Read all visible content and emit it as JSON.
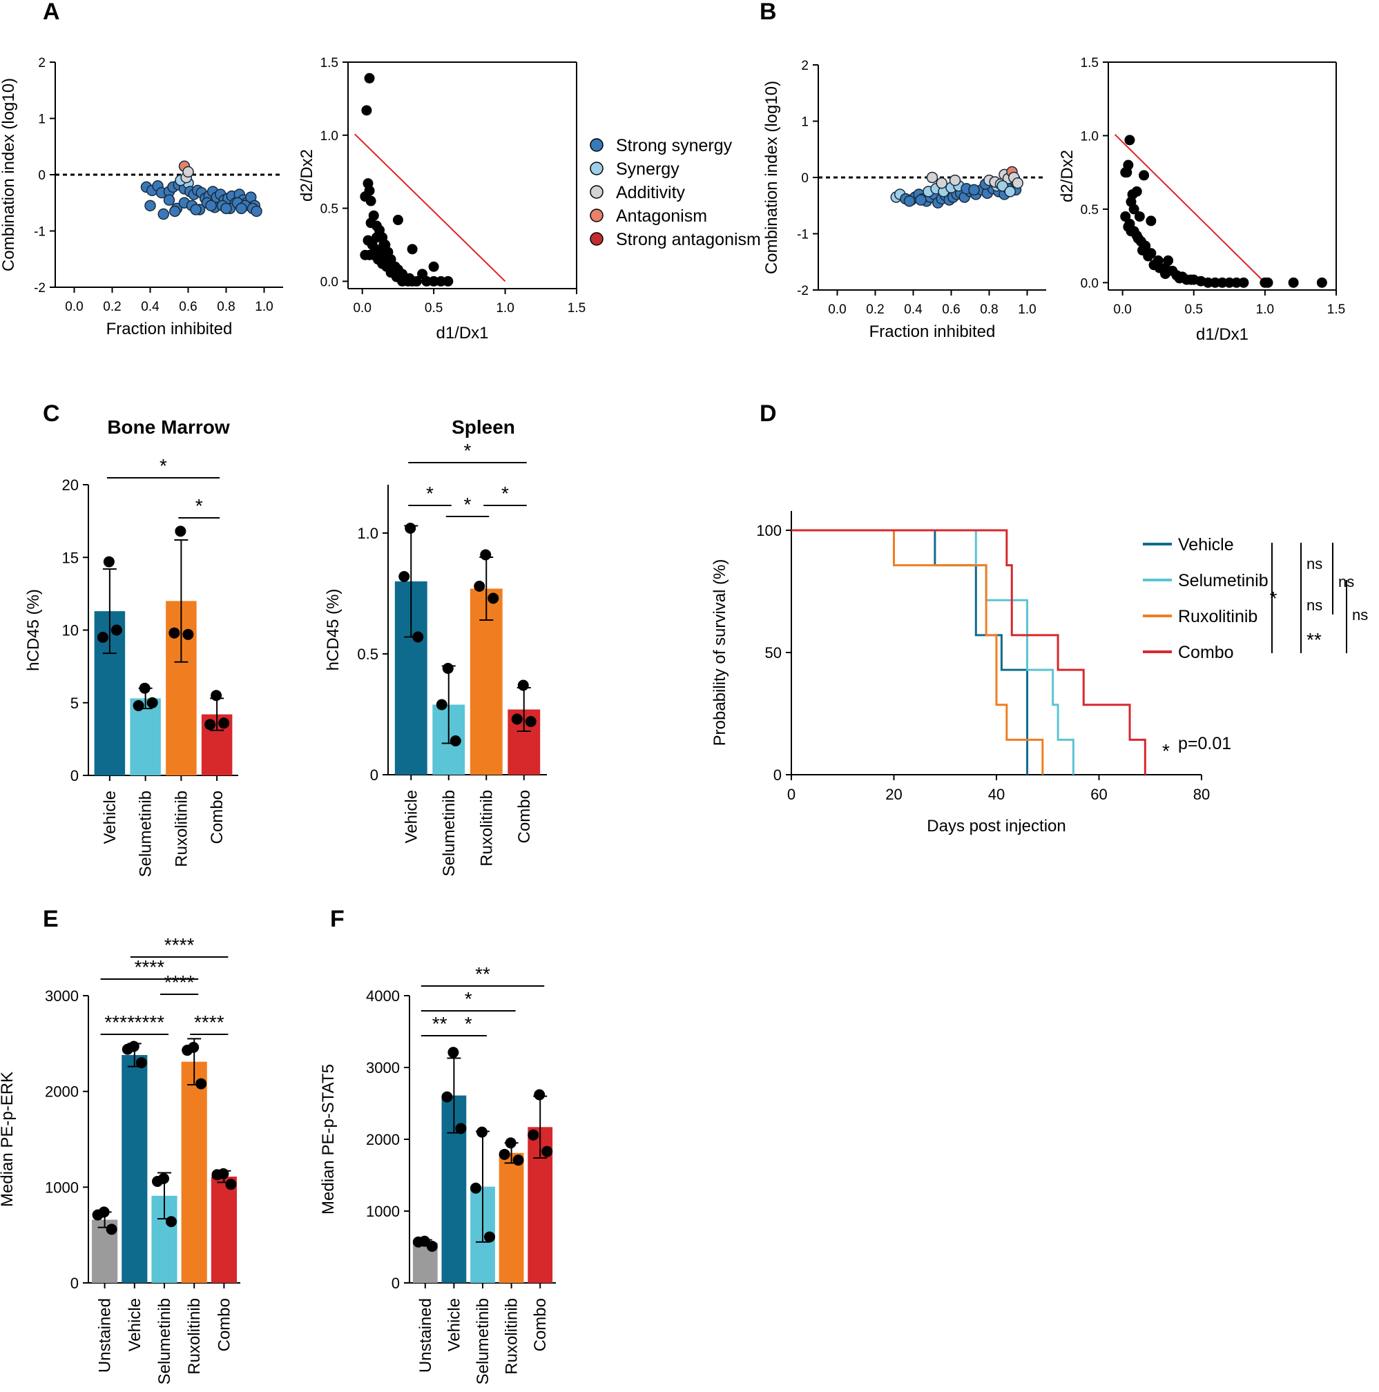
{
  "colors": {
    "vehicle": "#0f6b8e",
    "selumetinib": "#5bc4d6",
    "ruxolitinib": "#f07e21",
    "combo": "#d7282c",
    "unstained": "#9b9b9b",
    "strong_synergy": "#3a79b9",
    "synergy": "#9fcfe8",
    "additivity": "#d3d3d3",
    "antagonism": "#e8806a",
    "strong_antagonism": "#c22d2f",
    "isobol": "#e02020"
  },
  "chart_data": [
    {
      "panel": "A",
      "type": "scatter",
      "xlabel": "Fraction inhibited",
      "ylabel": "Combination index (log10)",
      "xticks": [
        "0.0",
        "0.2",
        "0.4",
        "0.6",
        "0.8",
        "1.0"
      ],
      "yticks": [
        "2",
        "1",
        "0",
        "-1",
        "-2"
      ],
      "xlim": [
        -0.1,
        1.1
      ],
      "ylim": [
        -2,
        2
      ],
      "reference_line": 0,
      "x": [
        0.38,
        0.41,
        0.44,
        0.46,
        0.5,
        0.52,
        0.55,
        0.57,
        0.58,
        0.6,
        0.61,
        0.63,
        0.65,
        0.67,
        0.69,
        0.71,
        0.73,
        0.75,
        0.77,
        0.79,
        0.81,
        0.83,
        0.85,
        0.87,
        0.89,
        0.91,
        0.93,
        0.95,
        0.4,
        0.5,
        0.54,
        0.58,
        0.62,
        0.66,
        0.7,
        0.74,
        0.78,
        0.82,
        0.86,
        0.9,
        0.94,
        0.47,
        0.53,
        0.64,
        0.72,
        0.8,
        0.88,
        0.96,
        0.56,
        0.59,
        0.58,
        0.6
      ],
      "y": [
        -0.22,
        -0.28,
        -0.2,
        -0.32,
        -0.3,
        -0.22,
        -0.18,
        -0.12,
        -0.25,
        -0.15,
        -0.3,
        -0.35,
        -0.28,
        -0.32,
        -0.42,
        -0.38,
        -0.3,
        -0.4,
        -0.35,
        -0.45,
        -0.42,
        -0.38,
        -0.5,
        -0.35,
        -0.45,
        -0.5,
        -0.4,
        -0.55,
        -0.55,
        -0.45,
        -0.6,
        -0.5,
        -0.55,
        -0.62,
        -0.5,
        -0.58,
        -0.55,
        -0.6,
        -0.5,
        -0.55,
        -0.6,
        -0.7,
        -0.65,
        -0.62,
        -0.55,
        -0.6,
        -0.6,
        -0.65,
        -0.1,
        -0.05,
        0.15,
        0.05
      ],
      "class": [
        "ss",
        "ss",
        "ss",
        "ss",
        "ss",
        "ss",
        "ss",
        "syn",
        "ss",
        "syn",
        "ss",
        "ss",
        "ss",
        "ss",
        "ss",
        "ss",
        "ss",
        "ss",
        "ss",
        "ss",
        "ss",
        "ss",
        "ss",
        "ss",
        "ss",
        "ss",
        "ss",
        "ss",
        "ss",
        "ss",
        "ss",
        "ss",
        "ss",
        "ss",
        "ss",
        "ss",
        "ss",
        "ss",
        "ss",
        "ss",
        "ss",
        "ss",
        "ss",
        "ss",
        "ss",
        "ss",
        "ss",
        "ss",
        "syn",
        "add",
        "ant",
        "add"
      ]
    },
    {
      "panel": "A",
      "type": "scatter",
      "xlabel": "d1/Dx1",
      "ylabel": "d2/Dx2",
      "xticks": [
        "0.0",
        "0.5",
        "1.0",
        "1.5"
      ],
      "yticks": [
        "1.5",
        "1.0",
        "0.5",
        "0.0"
      ],
      "xlim": [
        -0.1,
        1.5
      ],
      "ylim": [
        -0.05,
        1.5
      ],
      "x": [
        0.05,
        0.03,
        0.04,
        0.05,
        0.02,
        0.06,
        0.08,
        0.1,
        0.04,
        0.07,
        0.09,
        0.12,
        0.15,
        0.18,
        0.2,
        0.22,
        0.25,
        0.28,
        0.3,
        0.33,
        0.35,
        0.12,
        0.14,
        0.16,
        0.18,
        0.2,
        0.23,
        0.26,
        0.02,
        0.05,
        0.08,
        0.11,
        0.14,
        0.17,
        0.2,
        0.24,
        0.28,
        0.32,
        0.38,
        0.42,
        0.45,
        0.5,
        0.55,
        0.6,
        0.06,
        0.1,
        0.15,
        0.25,
        0.35,
        0.5
      ],
      "y": [
        1.39,
        1.17,
        0.67,
        0.62,
        0.58,
        0.55,
        0.45,
        0.38,
        0.28,
        0.25,
        0.22,
        0.2,
        0.18,
        0.15,
        0.12,
        0.1,
        0.08,
        0.05,
        0.02,
        0.02,
        0.0,
        0.35,
        0.3,
        0.25,
        0.2,
        0.15,
        0.1,
        0.05,
        0.18,
        0.18,
        0.18,
        0.15,
        0.12,
        0.1,
        0.06,
        0.03,
        0.0,
        0.0,
        0.0,
        0.05,
        0.0,
        0.0,
        0.0,
        0.0,
        0.4,
        0.3,
        0.25,
        0.42,
        0.22,
        0.1
      ],
      "reference_line": {
        "from": [
          0,
          0.97
        ],
        "to": [
          1.0,
          0.0
        ]
      }
    },
    {
      "panel": "B",
      "type": "scatter",
      "xlabel": "Fraction inhibited",
      "ylabel": "Combination index (log10)",
      "xticks": [
        "0.0",
        "0.2",
        "0.4",
        "0.6",
        "0.8",
        "1.0"
      ],
      "yticks": [
        "2",
        "1",
        "0",
        "-1",
        "-2"
      ],
      "xlim": [
        -0.1,
        1.1
      ],
      "ylim": [
        -2,
        2
      ],
      "reference_line": 0,
      "x": [
        0.31,
        0.33,
        0.36,
        0.39,
        0.41,
        0.43,
        0.45,
        0.47,
        0.49,
        0.51,
        0.53,
        0.55,
        0.57,
        0.59,
        0.61,
        0.63,
        0.65,
        0.67,
        0.7,
        0.73,
        0.76,
        0.79,
        0.82,
        0.85,
        0.88,
        0.91,
        0.94,
        0.38,
        0.44,
        0.48,
        0.52,
        0.56,
        0.6,
        0.64,
        0.68,
        0.72,
        0.78,
        0.84,
        0.9,
        0.5,
        0.55,
        0.62,
        0.8,
        0.83,
        0.86,
        0.88,
        0.9,
        0.92,
        0.93,
        0.95,
        0.87,
        0.91
      ],
      "y": [
        -0.35,
        -0.3,
        -0.38,
        -0.4,
        -0.35,
        -0.3,
        -0.38,
        -0.42,
        -0.35,
        -0.3,
        -0.45,
        -0.38,
        -0.32,
        -0.4,
        -0.35,
        -0.3,
        -0.28,
        -0.35,
        -0.25,
        -0.3,
        -0.22,
        -0.28,
        -0.2,
        -0.25,
        -0.3,
        -0.18,
        -0.22,
        -0.42,
        -0.4,
        -0.25,
        -0.2,
        -0.25,
        -0.18,
        -0.15,
        -0.2,
        -0.22,
        -0.12,
        -0.15,
        -0.2,
        0.0,
        -0.1,
        -0.05,
        -0.05,
        -0.08,
        -0.12,
        0.05,
        -0.02,
        0.1,
        0.0,
        -0.1,
        -0.15,
        -0.25
      ],
      "class": [
        "syn",
        "syn",
        "ss",
        "ss",
        "ss",
        "ss",
        "ss",
        "ss",
        "ss",
        "ss",
        "ss",
        "ss",
        "ss",
        "ss",
        "ss",
        "ss",
        "ss",
        "ss",
        "ss",
        "ss",
        "ss",
        "ss",
        "ss",
        "ss",
        "ss",
        "ss",
        "ss",
        "ss",
        "ss",
        "syn",
        "syn",
        "syn",
        "syn",
        "syn",
        "ss",
        "ss",
        "ss",
        "syn",
        "ss",
        "add",
        "add",
        "add",
        "add",
        "add",
        "add",
        "add",
        "add",
        "ant",
        "add",
        "add",
        "syn",
        "syn"
      ]
    },
    {
      "panel": "B",
      "type": "scatter",
      "xlabel": "d1/Dx1",
      "ylabel": "d2/Dx2",
      "xticks": [
        "0.0",
        "0.5",
        "1.0",
        "1.5"
      ],
      "yticks": [
        "1.5",
        "1.0",
        "0.5",
        "0.0"
      ],
      "xlim": [
        -0.1,
        1.5
      ],
      "ylim": [
        -0.05,
        1.5
      ],
      "x": [
        0.05,
        0.02,
        0.04,
        0.07,
        0.1,
        0.15,
        0.06,
        0.08,
        0.12,
        0.02,
        0.04,
        0.06,
        0.1,
        0.13,
        0.16,
        0.2,
        0.25,
        0.3,
        0.35,
        0.38,
        0.4,
        0.45,
        0.5,
        0.55,
        0.6,
        0.65,
        0.7,
        0.75,
        0.8,
        0.85,
        1.0,
        1.02,
        1.2,
        1.4,
        0.03,
        0.05,
        0.08,
        0.11,
        0.14,
        0.18,
        0.22,
        0.26,
        0.3,
        0.42,
        0.48,
        0.32,
        0.2,
        0.16
      ],
      "y": [
        0.97,
        0.75,
        0.8,
        0.6,
        0.62,
        0.73,
        0.55,
        0.5,
        0.45,
        0.45,
        0.38,
        0.35,
        0.32,
        0.28,
        0.25,
        0.2,
        0.15,
        0.1,
        0.08,
        0.05,
        0.03,
        0.02,
        0.02,
        0.01,
        0.0,
        0.0,
        0.0,
        0.0,
        0.0,
        0.0,
        0.0,
        0.0,
        0.0,
        0.0,
        0.75,
        0.4,
        0.35,
        0.3,
        0.22,
        0.18,
        0.12,
        0.1,
        0.06,
        0.04,
        0.02,
        0.15,
        0.42,
        0.25
      ],
      "reference_line": {
        "from": [
          0,
          0.97
        ],
        "to": [
          1.0,
          0.0
        ]
      }
    },
    {
      "panel": "C",
      "type": "bar",
      "title": "Bone Marrow",
      "ylabel": "hCD45 (%)",
      "categories": [
        "Vehicle",
        "Selumetinib",
        "Ruxolitinib",
        "Combo"
      ],
      "values": [
        11.3,
        5.3,
        12.0,
        4.2
      ],
      "sd": [
        2.9,
        0.7,
        4.2,
        1.1
      ],
      "yticks": [
        "0",
        "5",
        "10",
        "15",
        "20"
      ],
      "ylim": [
        0,
        20
      ],
      "points": [
        [
          14.7,
          9.5,
          10.0
        ],
        [
          6.0,
          4.8,
          5.0
        ],
        [
          16.8,
          9.8,
          9.7
        ],
        [
          5.5,
          3.5,
          3.6
        ]
      ],
      "significance": [
        {
          "label": "*",
          "pair": [
            1,
            4
          ]
        },
        {
          "label": "*",
          "pair": [
            3,
            4
          ]
        }
      ]
    },
    {
      "panel": "C",
      "type": "bar",
      "title": "Spleen",
      "ylabel": "hCD45 (%)",
      "categories": [
        "Vehicle",
        "Selumetinib",
        "Ruxolitinib",
        "Combo"
      ],
      "values": [
        0.8,
        0.29,
        0.77,
        0.27
      ],
      "sd": [
        0.23,
        0.16,
        0.13,
        0.09
      ],
      "yticks": [
        "0",
        "0.5",
        "1.0"
      ],
      "ylim": [
        0,
        1.2
      ],
      "points": [
        [
          1.02,
          0.82,
          0.57
        ],
        [
          0.44,
          0.29,
          0.14
        ],
        [
          0.91,
          0.78,
          0.73
        ],
        [
          0.37,
          0.23,
          0.22
        ]
      ],
      "significance": [
        {
          "label": "*",
          "pair": [
            1,
            4
          ]
        },
        {
          "label": "*",
          "pair": [
            1,
            2
          ]
        },
        {
          "label": "*",
          "pair": [
            2,
            3
          ]
        },
        {
          "label": "*",
          "pair": [
            3,
            4
          ]
        }
      ]
    },
    {
      "panel": "D",
      "type": "line",
      "xlabel": "Days post injection",
      "ylabel": "Probability of survival (%)",
      "xticks": [
        "0",
        "20",
        "40",
        "60",
        "80"
      ],
      "yticks": [
        "0",
        "50",
        "100"
      ],
      "xlim": [
        0,
        80
      ],
      "ylim": [
        0,
        100
      ],
      "series": [
        {
          "name": "Vehicle",
          "x": [
            0,
            28,
            28,
            36,
            36,
            41,
            41,
            46,
            46
          ],
          "y": [
            100,
            100,
            85.7,
            85.7,
            57.1,
            57.1,
            42.9,
            42.9,
            0
          ]
        },
        {
          "name": "Selumetinib",
          "x": [
            0,
            36,
            36,
            38,
            38,
            46,
            46,
            51,
            51,
            52,
            52,
            55,
            55
          ],
          "y": [
            100,
            100,
            85.7,
            85.7,
            71.4,
            71.4,
            42.9,
            42.9,
            28.6,
            28.6,
            14.3,
            14.3,
            0
          ]
        },
        {
          "name": "Ruxolitinib",
          "x": [
            0,
            20,
            20,
            38,
            38,
            40,
            40,
            42,
            42,
            46,
            46,
            49,
            49
          ],
          "y": [
            100,
            100,
            85.7,
            85.7,
            57.1,
            57.1,
            28.6,
            28.6,
            14.3,
            14.3,
            14.3,
            14.3,
            0
          ]
        },
        {
          "name": "Combo",
          "x": [
            0,
            42,
            42,
            43,
            43,
            46,
            46,
            52,
            52,
            57,
            57,
            66,
            66,
            69,
            69
          ],
          "y": [
            100,
            100,
            85.7,
            85.7,
            57.1,
            57.1,
            57.1,
            57.1,
            42.9,
            42.9,
            28.6,
            28.6,
            14.3,
            14.3,
            0
          ]
        }
      ],
      "stats": {
        "comparisons": [
          "ns",
          "ns",
          "ns",
          "ns",
          "*",
          "**"
        ],
        "footnote_star": "*",
        "footnote": "p=0.01"
      }
    },
    {
      "panel": "E",
      "type": "bar",
      "ylabel": "Median PE-p-ERK",
      "categories": [
        "Unstained",
        "Vehicle",
        "Selumetinib",
        "Ruxolitinib",
        "Combo"
      ],
      "values": [
        660,
        2380,
        910,
        2310,
        1110
      ],
      "sd": [
        80,
        120,
        240,
        240,
        60
      ],
      "yticks": [
        "0",
        "1000",
        "2000",
        "3000"
      ],
      "ylim": [
        0,
        3000
      ],
      "points": [
        [
          740,
          710,
          560
        ],
        [
          2470,
          2440,
          2300
        ],
        [
          1090,
          1060,
          640
        ],
        [
          2460,
          2430,
          2080
        ],
        [
          1140,
          1130,
          1030
        ]
      ],
      "significance": [
        {
          "label": "****",
          "pair": [
            2,
            5
          ]
        },
        {
          "label": "****",
          "pair": [
            1,
            4
          ]
        },
        {
          "label": "****",
          "pair": [
            3,
            4
          ]
        },
        {
          "label": "****",
          "pair": [
            1,
            2
          ]
        },
        {
          "label": "****",
          "pair": [
            2,
            3
          ]
        },
        {
          "label": "****",
          "pair": [
            4,
            5
          ]
        }
      ]
    },
    {
      "panel": "F",
      "type": "bar",
      "ylabel": "Median PE-p-STAT5",
      "categories": [
        "Unstained",
        "Vehicle",
        "Selumetinib",
        "Ruxolitinib",
        "Combo"
      ],
      "values": [
        560,
        2610,
        1340,
        1810,
        2170
      ],
      "sd": [
        40,
        520,
        770,
        140,
        430
      ],
      "yticks": [
        "0",
        "1000",
        "2000",
        "3000",
        "4000"
      ],
      "ylim": [
        0,
        4000
      ],
      "points": [
        [
          580,
          570,
          510
        ],
        [
          3210,
          2590,
          2150
        ],
        [
          2100,
          1320,
          640
        ],
        [
          1950,
          1790,
          1710
        ],
        [
          2620,
          2060,
          1830
        ]
      ],
      "significance": [
        {
          "label": "**",
          "pair": [
            1,
            5
          ]
        },
        {
          "label": "*",
          "pair": [
            1,
            4
          ]
        },
        {
          "label": "**",
          "pair": [
            1,
            2
          ]
        },
        {
          "label": "*",
          "pair": [
            2,
            3
          ]
        }
      ]
    }
  ],
  "labels": {
    "A": "A",
    "B": "B",
    "C": "C",
    "D": "D",
    "E": "E",
    "F": "F"
  },
  "legend_ci": [
    "Strong synergy",
    "Synergy",
    "Additivity",
    "Antagonism",
    "Strong antagonism"
  ]
}
